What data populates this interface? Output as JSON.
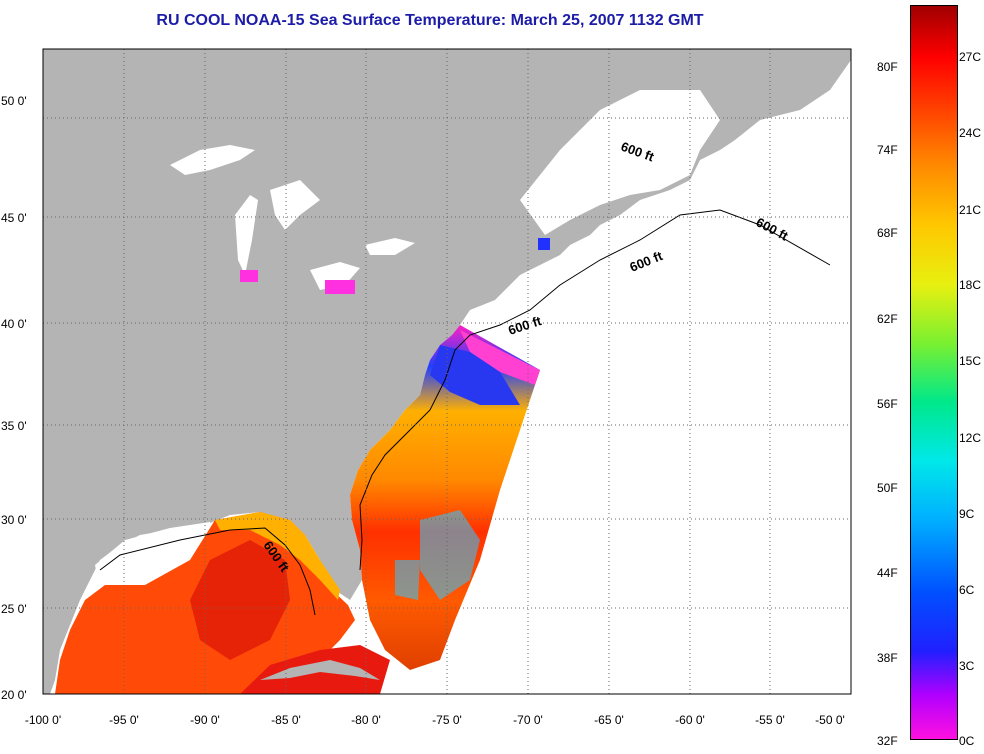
{
  "title": "RU COOL  NOAA-15  Sea Surface Temperature:  March 25, 2007 1132 GMT",
  "lon_labels": [
    "-100 0'",
    "-95 0'",
    "-90 0'",
    "-85 0'",
    "-80 0'",
    "-75 0'",
    "-70 0'",
    "-65 0'",
    "-60 0'",
    "-55 0'",
    "-50 0'"
  ],
  "lat_labels": [
    "20 0'",
    "25 0'",
    "30 0'",
    "35 0'",
    "40 0'",
    "45 0'",
    "50 0'"
  ],
  "depth_labels": [
    "600 ft",
    "600 ft",
    "600 ft",
    "600 ft",
    "600 ft"
  ],
  "colorbar": {
    "fahrenheit": [
      "80F",
      "74F",
      "68F",
      "62F",
      "56F",
      "50F",
      "44F",
      "38F",
      "32F"
    ],
    "celsius": [
      "27C",
      "24C",
      "21C",
      "18C",
      "15C",
      "12C",
      "9C",
      "6C",
      "3C",
      "0C"
    ]
  },
  "colors": {
    "land": "#b4b4b4",
    "ocean_nodata": "#ffffff",
    "title": "#1c1ca8"
  }
}
